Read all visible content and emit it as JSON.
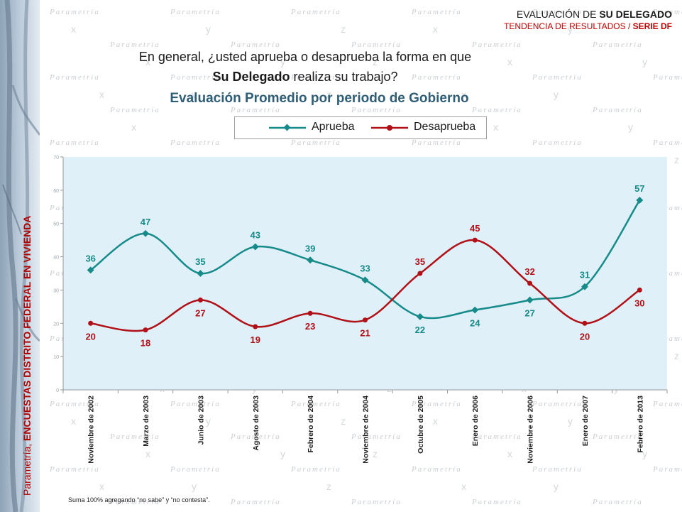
{
  "header": {
    "title_prefix": "EVALUACIÓN DE ",
    "title_bold": "SU DELEGADO",
    "subtitle_prefix": "TENDENCIA DE RESULTADOS / ",
    "subtitle_bold": "SERIE DF"
  },
  "question": {
    "line1": "En general, ¿usted aprueba o desaprueba la forma en que",
    "line2_bold": "Su Delegado",
    "line2_rest": " realiza su trabajo?"
  },
  "side_title": {
    "prefix": "Parametría, ",
    "bold": "ENCUESTAS DISTRITO FEDERAL EN VIVIENDA"
  },
  "watermark_text": "Parametría",
  "footnote": "Suma 100%  agregando “no sabe” y “no contesta”.",
  "colors": {
    "aprueba": "#178a8a",
    "desaprueba": "#b01018",
    "plot_bg": "#dff0f8",
    "title": "#2f5e76"
  },
  "chart_data": {
    "type": "line",
    "title": "Evaluación Promedio por periodo de Gobierno",
    "categories": [
      "Noviembre de 2002",
      "Marzo de 2003",
      "Junio de 2003",
      "Agosto de 2003",
      "Febrero de 2004",
      "Noviembre de 2004",
      "Octubre de 2005",
      "Enero de 2006",
      "Noviembre de 2006",
      "Enero de 2007",
      "Febrero de 2013"
    ],
    "series": [
      {
        "name": "Aprueba",
        "color": "#178a8a",
        "values": [
          36,
          47,
          35,
          43,
          39,
          33,
          22,
          24,
          27,
          31,
          57
        ]
      },
      {
        "name": "Desaprueba",
        "color": "#b01018",
        "values": [
          20,
          18,
          27,
          19,
          23,
          21,
          35,
          45,
          32,
          20,
          30
        ]
      }
    ],
    "ylim": [
      0,
      70
    ],
    "yticks": [
      0,
      10,
      20,
      30,
      40,
      50,
      60,
      70
    ],
    "grid": false,
    "legend": "top"
  }
}
